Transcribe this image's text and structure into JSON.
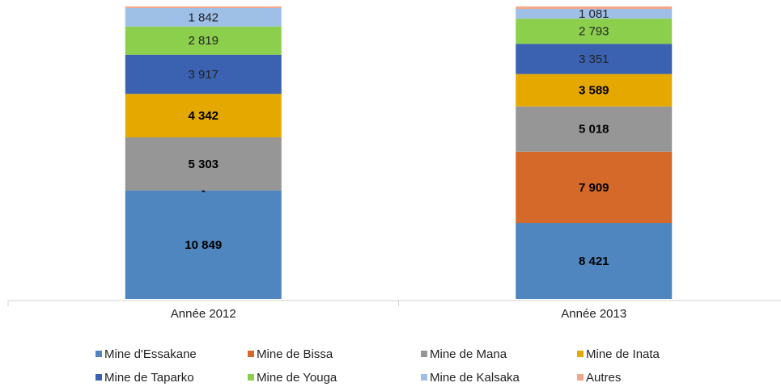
{
  "chart_data": {
    "type": "bar",
    "stacked": "percent",
    "categories": [
      "Année 2012",
      "Année 2013"
    ],
    "series": [
      {
        "name": "Mine d'Essakane",
        "color": "#4f86c0",
        "values": [
          10849,
          8421
        ],
        "value_labels": [
          "10 849",
          "8 421"
        ]
      },
      {
        "name": "Mine de Bissa",
        "color": "#d4692a",
        "values": [
          0,
          7909
        ],
        "value_labels": [
          "-",
          "7 909"
        ]
      },
      {
        "name": "Mine de Mana",
        "color": "#969696",
        "values": [
          5303,
          5018
        ],
        "value_labels": [
          "5 303",
          "5 018"
        ]
      },
      {
        "name": "Mine de Inata",
        "color": "#e5a800",
        "values": [
          4342,
          3589
        ],
        "value_labels": [
          "4 342",
          "3 589"
        ]
      },
      {
        "name": "Mine de Taparko",
        "color": "#3a62b0",
        "values": [
          3917,
          3351
        ],
        "value_labels": [
          "3 917",
          "3 351"
        ]
      },
      {
        "name": "Mine de Youga",
        "color": "#8ccf4d",
        "values": [
          2819,
          2793
        ],
        "value_labels": [
          "2 819",
          "2 793"
        ]
      },
      {
        "name": "Mine de Kalsaka",
        "color": "#9ebfe6",
        "values": [
          1842,
          1081
        ],
        "value_labels": [
          "1 842",
          "1 081"
        ]
      },
      {
        "name": "Autres",
        "color": "#f4a58a",
        "values": [
          160,
          270
        ]
      }
    ],
    "legend": "bottom"
  }
}
